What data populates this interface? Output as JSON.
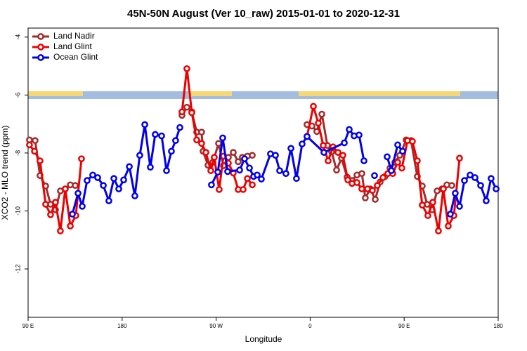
{
  "chart_data": {
    "type": "line",
    "title": "45N-50N August (Ver 10_raw)   2015-01-01 to 2020-12-31",
    "x_label": "Longitude",
    "y_label": "XCO2 - MLO trend (ppm)",
    "xlim": [
      90,
      540
    ],
    "ylim": [
      -13.67,
      -3.69
    ],
    "xticks": [
      {
        "value": 90,
        "label": "90 E"
      },
      {
        "value": 180,
        "label": "180"
      },
      {
        "value": 270,
        "label": "90 W"
      },
      {
        "value": 360,
        "label": "0"
      },
      {
        "value": 450,
        "label": "90 E"
      },
      {
        "value": 540,
        "label": "180"
      }
    ],
    "yticks": [
      -4,
      -6,
      -8,
      -10,
      -12
    ],
    "legend_position": "top-left",
    "series": [
      {
        "name": "Land Nadir",
        "color": "#a52a2a",
        "x": [
          91.3,
          96.7,
          101.4,
          106.8,
          111.5,
          116.2,
          120.9,
          125.6,
          130.4,
          135.1,
          186,
          237.3,
          242.0,
          246.7,
          251.4,
          256.1,
          257.5,
          262.2,
          266.9,
          272.3,
          277.0,
          281.7,
          286.4,
          291.1,
          295.1,
          299.9,
          304.6,
          330,
          357.0,
          361.7,
          366.4,
          371.2,
          376.5,
          380.6,
          385.3,
          390.0,
          395.4,
          400.1,
          404.8,
          409.5,
          412.8,
          417.6,
          422.3,
          427.0,
          431.7,
          436.4,
          441.1,
          445.8,
          451.9,
          456.6,
          462.6,
          467.3,
          472.0,
          476.8,
          481.5,
          486.1,
          490.9,
          495.6
        ],
        "values": [
          -7.55,
          -7.57,
          -8.78,
          -9.14,
          -9.77,
          -9.96,
          -9.31,
          -9.24,
          -9.1,
          -9.12,
          null,
          -6.7,
          -6.42,
          -6.58,
          -7.28,
          -7.28,
          -7.94,
          -8.42,
          -8.32,
          -7.67,
          -8.44,
          -8.15,
          -7.98,
          -8.3,
          -8.15,
          -8.11,
          -8.08,
          null,
          -7.02,
          -7.07,
          -7.26,
          -6.66,
          -7.74,
          -7.96,
          -8.59,
          -8.18,
          -8.83,
          -8.95,
          -8.76,
          -8.71,
          -9.55,
          -9.24,
          -9.6,
          -9.0,
          -8.81,
          -8.52,
          -8.32,
          -8.08,
          -7.55,
          -7.57,
          -8.81,
          -9.14,
          -9.77,
          -9.96,
          -9.31,
          -9.24,
          -9.1,
          -9.12
        ]
      },
      {
        "name": "Land Glint",
        "color": "#ee0000",
        "x": [
          91.3,
          96.1,
          101.4,
          106.8,
          111.5,
          116.2,
          120.9,
          125.6,
          130.4,
          135.7,
          141.1,
          186,
          237.3,
          242.0,
          246.7,
          251.4,
          256.1,
          260.2,
          264.9,
          268.2,
          272.9,
          277.0,
          281.7,
          286.4,
          291.1,
          295.8,
          299.9,
          304.6,
          330,
          357.0,
          363.1,
          367.8,
          372.5,
          377.2,
          381.9,
          386.6,
          391.3,
          396.1,
          400.1,
          404.8,
          409.5,
          414.9,
          419.6,
          424.3,
          429.7,
          434.4,
          439.1,
          443.8,
          447.8,
          453.2,
          457.9,
          462.6,
          467.3,
          472.7,
          477.4,
          482.8,
          487.5,
          492.2,
          497.6,
          503.0
        ],
        "values": [
          -7.72,
          -7.94,
          -8.27,
          -9.77,
          -10.13,
          -9.7,
          -10.69,
          -9.24,
          -10.52,
          -10.16,
          -8.2,
          null,
          -6.58,
          -5.09,
          -6.61,
          -7.55,
          -7.67,
          -7.98,
          -8.61,
          -8.15,
          -9.26,
          -8.11,
          -8.35,
          -8.69,
          -9.26,
          -9.26,
          -8.88,
          -9.1,
          null,
          -7.43,
          -6.39,
          -6.97,
          -7.74,
          -8.27,
          -7.79,
          -7.98,
          -8.08,
          -8.93,
          -9.05,
          -9.02,
          -9.24,
          -9.24,
          -9.29,
          -9.12,
          -8.85,
          -8.71,
          -8.71,
          -8.32,
          -8.52,
          -7.57,
          -7.6,
          -8.27,
          -9.8,
          -10.16,
          -9.7,
          -10.69,
          -9.24,
          -10.52,
          -10.16,
          -8.18
        ]
      },
      {
        "name": "Ocean Glint",
        "color": "#0000ee",
        "x": [
          132.4,
          137.8,
          141.8,
          146.5,
          151.9,
          156.6,
          162.0,
          167.3,
          172.1,
          176.8,
          181.5,
          186.9,
          192.2,
          196.9,
          201.7,
          207.0,
          211.7,
          217.8,
          222.5,
          227.2,
          231.2,
          235.3,
          250,
          265.5,
          271.6,
          276.3,
          281.0,
          292.5,
          297.2,
          301.9,
          305.9,
          309.3,
          313.3,
          322.0,
          326.8,
          330.8,
          336.8,
          341.6,
          346.9,
          352.3,
          357.0,
          373.2,
          392.7,
          397.4,
          402.1,
          406.8,
          411.5,
          416,
          421.6,
          428,
          433.7,
          437.7,
          443.8,
          448.5,
          470,
          494.2,
          498.9,
          503.0,
          507.7,
          513.1,
          517.8,
          523.2,
          528.5,
          533.2,
          538.0
        ],
        "values": [
          -10.11,
          -9.39,
          -9.84,
          -8.95,
          -8.76,
          -8.85,
          -9.12,
          -9.65,
          -8.88,
          -9.24,
          -8.93,
          -8.47,
          -9.48,
          -8.08,
          -7.02,
          -8.49,
          -7.36,
          -7.41,
          -8.61,
          -7.94,
          -7.57,
          -7.12,
          null,
          -9.1,
          -8.66,
          -7.48,
          -8.64,
          -8.59,
          -8.2,
          -8.52,
          -8.81,
          -8.76,
          -8.9,
          -8.03,
          -8.08,
          -8.61,
          -8.71,
          -7.84,
          -8.88,
          -7.69,
          -7.43,
          -7.98,
          -7.65,
          -7.19,
          -7.41,
          -7.38,
          -8.27,
          null,
          -8.78,
          null,
          -8.13,
          -8.61,
          -7.72,
          -7.94,
          null,
          -10.11,
          -9.39,
          -9.84,
          -8.95,
          -8.76,
          -8.85,
          -9.12,
          -9.65,
          -8.88,
          -9.24
        ]
      }
    ]
  }
}
